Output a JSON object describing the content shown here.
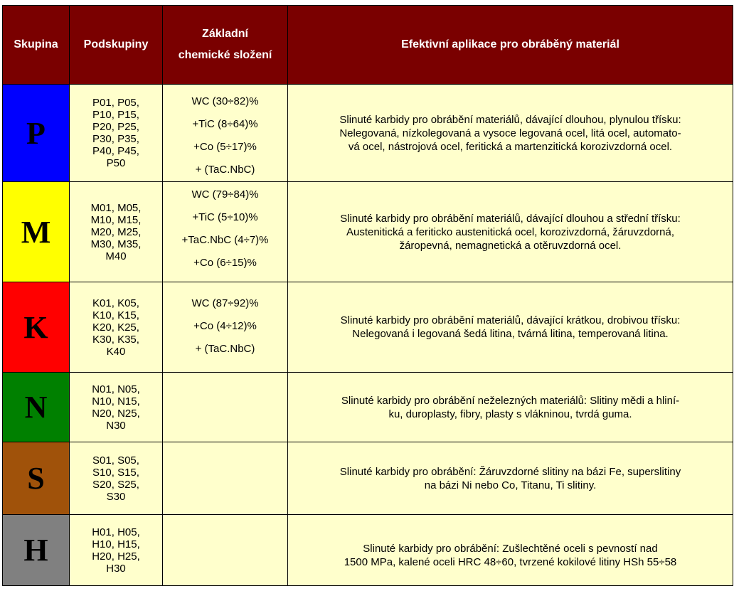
{
  "header": {
    "group": "Skupina",
    "subgroups": "Podskupiny",
    "chem_line1": "Základní",
    "chem_line2": "chemické složení",
    "application": "Efektivní aplikace pro obráběný materiál"
  },
  "colors": {
    "header_bg": "#7a0000",
    "cell_bg": "#ffffcc",
    "P": "#0000ff",
    "M": "#ffff00",
    "K": "#ff0000",
    "N": "#008000",
    "S": "#a0520a",
    "H": "#808080"
  },
  "rows": [
    {
      "group": "P",
      "subgroups": [
        "P01, P05,",
        "P10, P15,",
        "P20, P25,",
        "P30, P35,",
        "P40, P45,",
        "P50"
      ],
      "chem": [
        "WC (30÷82)%",
        "+TiC (8÷64)%",
        "+Co (5÷17)%",
        "+ (TaC.NbC)"
      ],
      "app": [
        "Slinuté karbidy pro obrábění materiálů, dávající dlouhou, plynulou třísku:",
        "Nelegovaná, nízkolegovaná a vysoce legovaná ocel, litá ocel, automato-",
        "vá ocel, nástrojová ocel, feritická a martenzitická korozivzdorná ocel."
      ]
    },
    {
      "group": "M",
      "subgroups": [
        "M01, M05,",
        "M10, M15,",
        "M20, M25,",
        "M30, M35,",
        "M40"
      ],
      "chem": [
        "WC (79÷84)%",
        "+TiC (5÷10)%",
        "+TaC.NbC (4÷7)%",
        "+Co (6÷15)%"
      ],
      "app": [
        "Slinuté karbidy pro obrábění materiálů, dávající dlouhou a střední třísku:",
        "Austenitická a feriticko austenitická ocel, korozivzdorná, žáruvzdorná,",
        "žáropevná, nemagnetická a otěruvzdorná ocel."
      ]
    },
    {
      "group": "K",
      "subgroups": [
        "K01, K05,",
        "K10, K15,",
        "K20, K25,",
        "K30, K35,",
        "K40"
      ],
      "chem": [
        "WC (87÷92)%",
        "+Co (4÷12)%",
        "+ (TaC.NbC)"
      ],
      "app": [
        "Slinuté karbidy pro obrábění materiálů, dávající krátkou, drobivou třísku:",
        "Nelegovaná i legovaná šedá litina, tvárná litina, temperovaná litina."
      ]
    },
    {
      "group": "N",
      "subgroups": [
        "N01, N05,",
        "N10, N15,",
        "N20, N25,",
        "N30"
      ],
      "chem": [],
      "app": [
        "Slinuté karbidy pro obrábění neželezných materiálů: Slitiny mědi a hliní-",
        "ku, duroplasty, fibry, plasty s vlákninou, tvrdá guma."
      ]
    },
    {
      "group": "S",
      "subgroups": [
        "S01, S05,",
        "S10, S15,",
        "S20, S25,",
        "S30"
      ],
      "chem": [],
      "app": [
        "Slinuté karbidy pro obrábění: Žáruvzdorné slitiny na bázi Fe, superslitiny",
        "na bázi Ni nebo Co, Titanu, Ti slitiny."
      ]
    },
    {
      "group": "H",
      "subgroups": [
        "H01, H05,",
        "H10, H15,",
        "H20, H25,",
        "H30"
      ],
      "chem": [],
      "app": [
        "Slinuté karbidy pro obrábění: Zušlechtěné oceli s pevností nad",
        "1500 MPa, kalené oceli HRC 48÷60, tvrzené kokilové litiny HSh 55÷58"
      ]
    }
  ]
}
